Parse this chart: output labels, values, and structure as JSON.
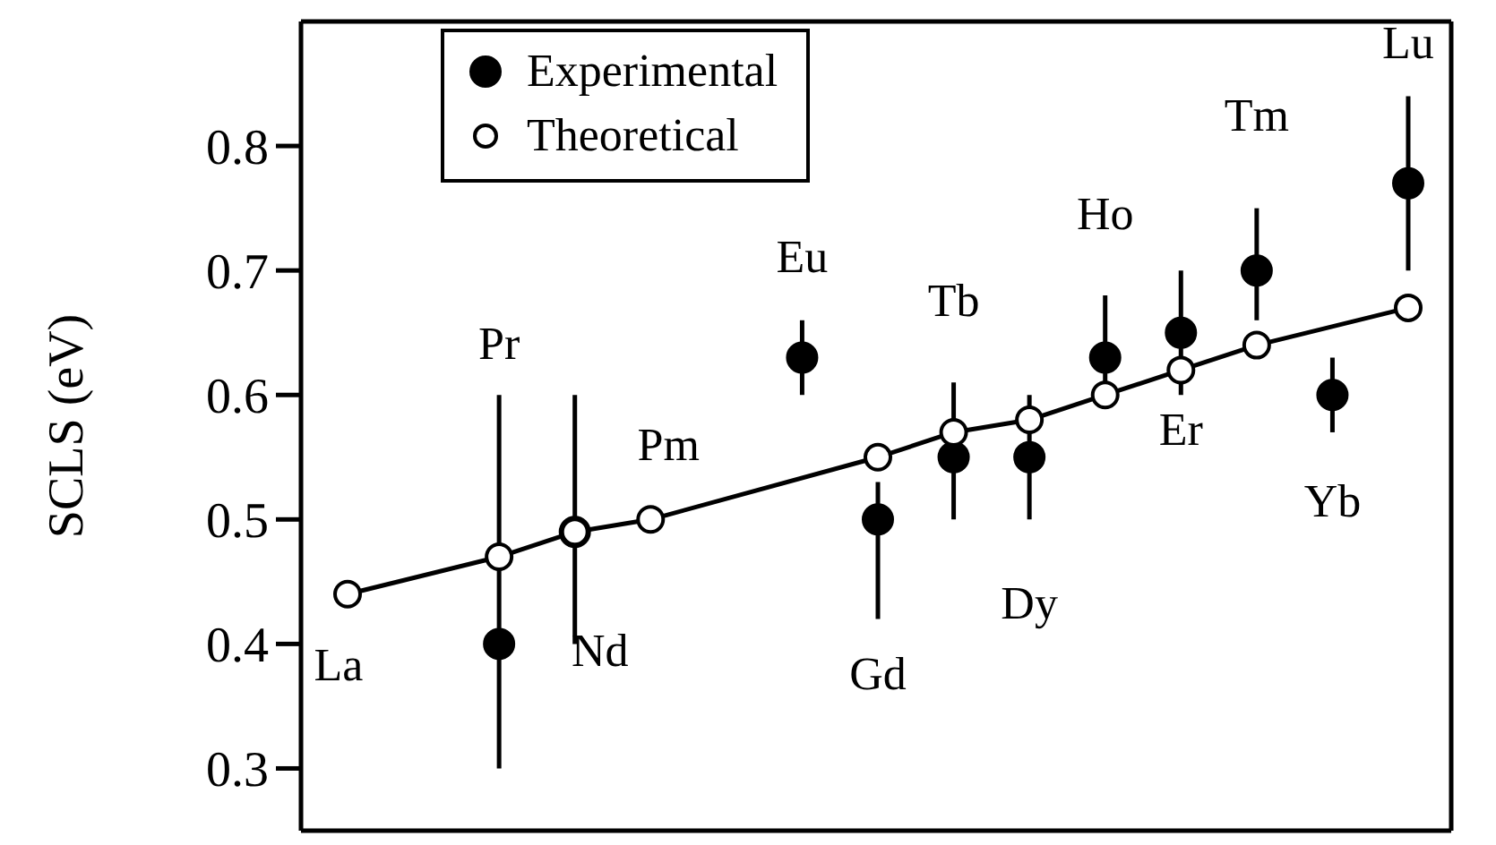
{
  "chart_data": {
    "type": "line",
    "ylabel": "SCLS (eV)",
    "categories": [
      null,
      null,
      null,
      null,
      null,
      null,
      null,
      null,
      null,
      null,
      null,
      null,
      null,
      null,
      null
    ],
    "ylim": [
      0.25,
      0.9
    ],
    "yticks": [
      0.3,
      0.4,
      0.5,
      0.6,
      0.7,
      0.8
    ],
    "tick_labels": "y",
    "grid": false,
    "legend": "top left",
    "series": [
      {
        "name": "Experimental",
        "type": "scatter",
        "color": "#000000",
        "marker": "circle",
        "values": [
          null,
          null,
          0.4,
          0.49,
          null,
          null,
          0.63,
          0.5,
          0.55,
          0.55,
          0.63,
          0.65,
          0.7,
          0.6,
          0.77
        ],
        "errors": [
          null,
          null,
          [
            0.3,
            0.6
          ],
          [
            0.4,
            0.6
          ],
          null,
          null,
          [
            0.6,
            0.66
          ],
          [
            0.42,
            0.53
          ],
          [
            0.5,
            0.61
          ],
          [
            0.5,
            0.6
          ],
          [
            0.61,
            0.68
          ],
          [
            0.6,
            0.7
          ],
          [
            0.66,
            0.75
          ],
          [
            0.57,
            0.63
          ],
          [
            0.7,
            0.84
          ]
        ]
      },
      {
        "name": "Theoretical",
        "type": "line",
        "color": "#000000",
        "marker": "circle",
        "line_style": "solid",
        "values": [
          0.44,
          null,
          0.47,
          0.49,
          0.5,
          null,
          null,
          0.55,
          0.57,
          0.58,
          0.6,
          0.62,
          0.64,
          null,
          0.67
        ]
      }
    ],
    "annotations": [
      {
        "text": "La",
        "y": 0.44
      },
      {
        "text": "Pr",
        "y": 0.6
      },
      {
        "text": "Nd",
        "y": 0.49
      },
      {
        "text": "Pm",
        "y": 0.5
      },
      {
        "text": "Eu",
        "y": 0.63
      },
      {
        "text": "Gd",
        "y": 0.5
      },
      {
        "text": "Tb",
        "y": 0.57
      },
      {
        "text": "Dy",
        "y": 0.55
      },
      {
        "text": "Ho",
        "y": 0.63
      },
      {
        "text": "Er",
        "y": 0.62
      },
      {
        "text": "Tm",
        "y": 0.7
      },
      {
        "text": "Yb",
        "y": 0.6
      },
      {
        "text": "Lu",
        "y": 0.77
      }
    ]
  }
}
